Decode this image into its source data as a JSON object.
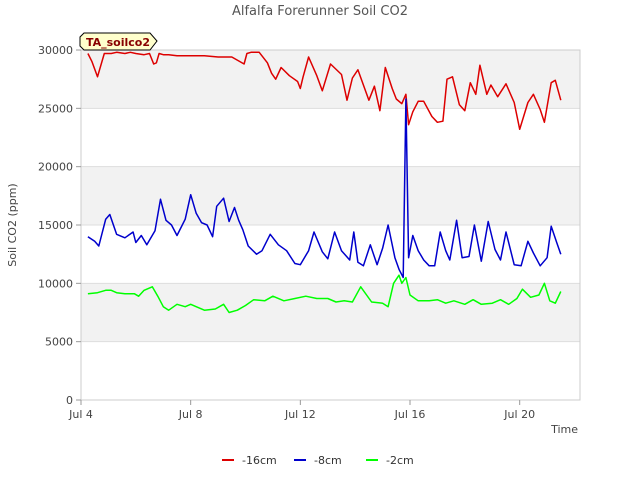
{
  "chart_data": {
    "type": "line",
    "title": "Alfalfa Forerunner Soil CO2",
    "xlabel": "Time",
    "ylabel": "Soil CO2 (ppm)",
    "site_label": "TA_soilco2",
    "xlim": [
      4.0,
      22.2
    ],
    "ylim": [
      0,
      30000
    ],
    "x_unit": "day of July",
    "x_ticks": [
      {
        "value": 4,
        "label": "Jul 4"
      },
      {
        "value": 8,
        "label": "Jul 8"
      },
      {
        "value": 12,
        "label": "Jul 12"
      },
      {
        "value": 16,
        "label": "Jul 16"
      },
      {
        "value": 20,
        "label": "Jul 20"
      }
    ],
    "y_ticks": [
      0,
      5000,
      10000,
      15000,
      20000,
      25000,
      30000
    ],
    "grid": "horizontal bands",
    "legend_position": "bottom-center",
    "series": [
      {
        "name": "-16cm",
        "color": "#dd0000",
        "x": [
          4.25,
          4.4,
          4.6,
          4.85,
          4.95,
          5.1,
          5.3,
          5.6,
          5.8,
          6.0,
          6.3,
          6.5,
          6.65,
          6.75,
          6.85,
          7.0,
          7.2,
          7.5,
          8.0,
          8.5,
          9.0,
          9.5,
          9.95,
          10.05,
          10.2,
          10.5,
          10.8,
          10.95,
          11.1,
          11.3,
          11.6,
          11.9,
          12.0,
          12.1,
          12.3,
          12.6,
          12.8,
          13.1,
          13.5,
          13.7,
          13.9,
          14.1,
          14.5,
          14.7,
          14.9,
          15.1,
          15.35,
          15.5,
          15.7,
          15.85,
          15.95,
          16.1,
          16.3,
          16.5,
          16.8,
          17.0,
          17.2,
          17.35,
          17.55,
          17.8,
          18.0,
          18.2,
          18.4,
          18.55,
          18.8,
          18.95,
          19.2,
          19.5,
          19.8,
          20.0,
          20.3,
          20.5,
          20.75,
          20.9,
          21.15,
          21.3,
          21.5
        ],
        "y": [
          29700,
          29000,
          27700,
          29700,
          29700,
          29700,
          29800,
          29700,
          29800,
          29700,
          29600,
          29700,
          28800,
          28900,
          29700,
          29600,
          29600,
          29500,
          29500,
          29500,
          29400,
          29400,
          28800,
          29700,
          29800,
          29800,
          28900,
          28000,
          27500,
          28500,
          27800,
          27300,
          26700,
          27700,
          29400,
          27800,
          26500,
          28800,
          27900,
          25700,
          27600,
          28300,
          25700,
          26900,
          24800,
          28500,
          26700,
          25800,
          25400,
          26200,
          23600,
          24700,
          25600,
          25600,
          24300,
          23800,
          23900,
          27500,
          27700,
          25300,
          24800,
          27200,
          26200,
          28700,
          26200,
          27000,
          26000,
          27100,
          25500,
          23200,
          25500,
          26200,
          24900,
          23800,
          27200,
          27400,
          25700
        ]
      },
      {
        "name": "-8cm",
        "color": "#0000cc",
        "x": [
          4.25,
          4.5,
          4.65,
          4.9,
          5.05,
          5.3,
          5.6,
          5.9,
          6.0,
          6.2,
          6.4,
          6.7,
          6.9,
          7.1,
          7.3,
          7.5,
          7.8,
          8.0,
          8.2,
          8.4,
          8.6,
          8.8,
          8.95,
          9.2,
          9.4,
          9.6,
          9.75,
          9.9,
          10.1,
          10.4,
          10.6,
          10.9,
          11.2,
          11.5,
          11.8,
          12.0,
          12.3,
          12.5,
          12.8,
          13.0,
          13.25,
          13.5,
          13.8,
          13.95,
          14.1,
          14.3,
          14.55,
          14.8,
          15.0,
          15.2,
          15.45,
          15.6,
          15.75,
          15.85,
          15.95,
          16.1,
          16.3,
          16.5,
          16.7,
          16.9,
          17.1,
          17.3,
          17.45,
          17.7,
          17.9,
          18.15,
          18.35,
          18.6,
          18.85,
          19.1,
          19.3,
          19.5,
          19.8,
          20.05,
          20.3,
          20.5,
          20.75,
          21.0,
          21.15,
          21.35,
          21.5
        ],
        "y": [
          14000,
          13600,
          13200,
          15500,
          15900,
          14200,
          13900,
          14400,
          13500,
          14100,
          13300,
          14500,
          17200,
          15400,
          15000,
          14100,
          15500,
          17600,
          16000,
          15200,
          15000,
          14000,
          16600,
          17300,
          15300,
          16500,
          15400,
          14600,
          13200,
          12500,
          12800,
          14200,
          13300,
          12800,
          11700,
          11600,
          12800,
          14400,
          12700,
          12100,
          14400,
          12800,
          12000,
          14400,
          11800,
          11500,
          13300,
          11600,
          13000,
          15000,
          12200,
          11200,
          10500,
          25800,
          12200,
          14100,
          12800,
          12000,
          11500,
          11500,
          14400,
          12800,
          12000,
          15400,
          12200,
          12300,
          15000,
          11900,
          15300,
          12900,
          12000,
          14400,
          11600,
          11500,
          13600,
          12600,
          11500,
          12200,
          14900,
          13500,
          12500
        ]
      },
      {
        "name": "-2cm",
        "color": "#00ff00",
        "x": [
          4.25,
          4.6,
          4.9,
          5.1,
          5.3,
          5.6,
          5.95,
          6.1,
          6.3,
          6.6,
          6.8,
          7.0,
          7.2,
          7.5,
          7.8,
          8.0,
          8.2,
          8.5,
          8.9,
          9.2,
          9.4,
          9.7,
          10.0,
          10.3,
          10.7,
          11.0,
          11.4,
          11.8,
          12.2,
          12.6,
          13.0,
          13.3,
          13.6,
          13.9,
          14.2,
          14.6,
          15.0,
          15.2,
          15.4,
          15.6,
          15.7,
          15.85,
          16.0,
          16.3,
          16.7,
          17.0,
          17.3,
          17.6,
          18.0,
          18.3,
          18.6,
          19.0,
          19.3,
          19.6,
          19.9,
          20.1,
          20.4,
          20.7,
          20.9,
          21.1,
          21.3,
          21.5
        ],
        "y": [
          9100,
          9200,
          9400,
          9400,
          9200,
          9100,
          9100,
          8900,
          9400,
          9700,
          8900,
          8000,
          7700,
          8200,
          8000,
          8200,
          8000,
          7700,
          7800,
          8200,
          7500,
          7700,
          8100,
          8600,
          8500,
          8900,
          8500,
          8700,
          8900,
          8700,
          8700,
          8400,
          8500,
          8400,
          9700,
          8400,
          8300,
          8000,
          10000,
          10700,
          10000,
          10500,
          9000,
          8500,
          8500,
          8600,
          8300,
          8500,
          8200,
          8600,
          8200,
          8300,
          8600,
          8200,
          8700,
          9500,
          8800,
          9000,
          10000,
          8500,
          8300,
          9300
        ]
      }
    ]
  }
}
